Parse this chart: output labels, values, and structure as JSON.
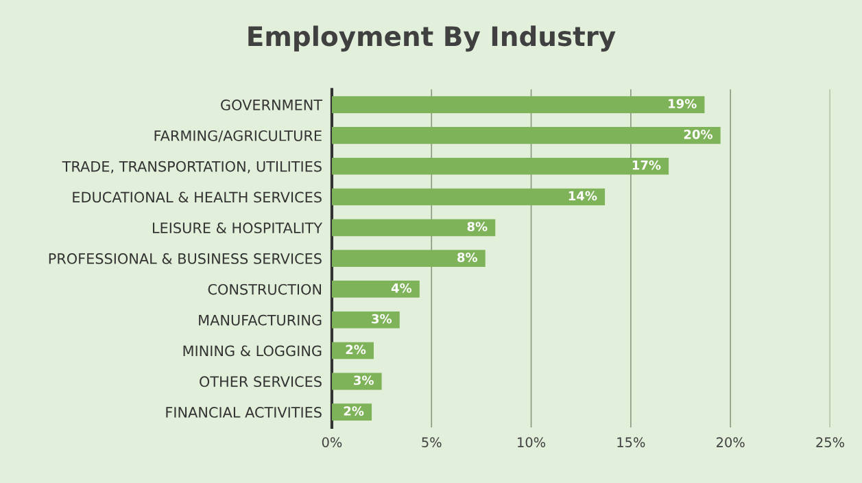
{
  "chart_data": {
    "type": "bar",
    "orientation": "horizontal",
    "title": "Employment By Industry",
    "categories": [
      "GOVERNMENT",
      "FARMING/AGRICULTURE",
      "TRADE, TRANSPORTATION, UTILITIES",
      "EDUCATIONAL & HEALTH SERVICES",
      "LEISURE & HOSPITALITY",
      "PROFESSIONAL & BUSINESS SERVICES",
      "CONSTRUCTION",
      "MANUFACTURING",
      "MINING & LOGGING",
      "OTHER SERVICES",
      "FINANCIAL ACTIVITIES"
    ],
    "values": [
      18.7,
      19.5,
      16.9,
      13.7,
      8.2,
      7.7,
      4.4,
      3.4,
      2.1,
      2.5,
      2.0
    ],
    "value_labels": [
      "19%",
      "20%",
      "17%",
      "14%",
      "8%",
      "8%",
      "4%",
      "3%",
      "2%",
      "3%",
      "2%"
    ],
    "color": "#7fb35a",
    "xlim": [
      0,
      25
    ],
    "xticks": [
      {
        "value": 0,
        "label": "0%"
      },
      {
        "value": 5,
        "label": "5%"
      },
      {
        "value": 10,
        "label": "10%"
      },
      {
        "value": 15,
        "label": "15%"
      },
      {
        "value": 20,
        "label": "20%"
      },
      {
        "value": 25,
        "label": "25%"
      }
    ],
    "grid": "x"
  }
}
